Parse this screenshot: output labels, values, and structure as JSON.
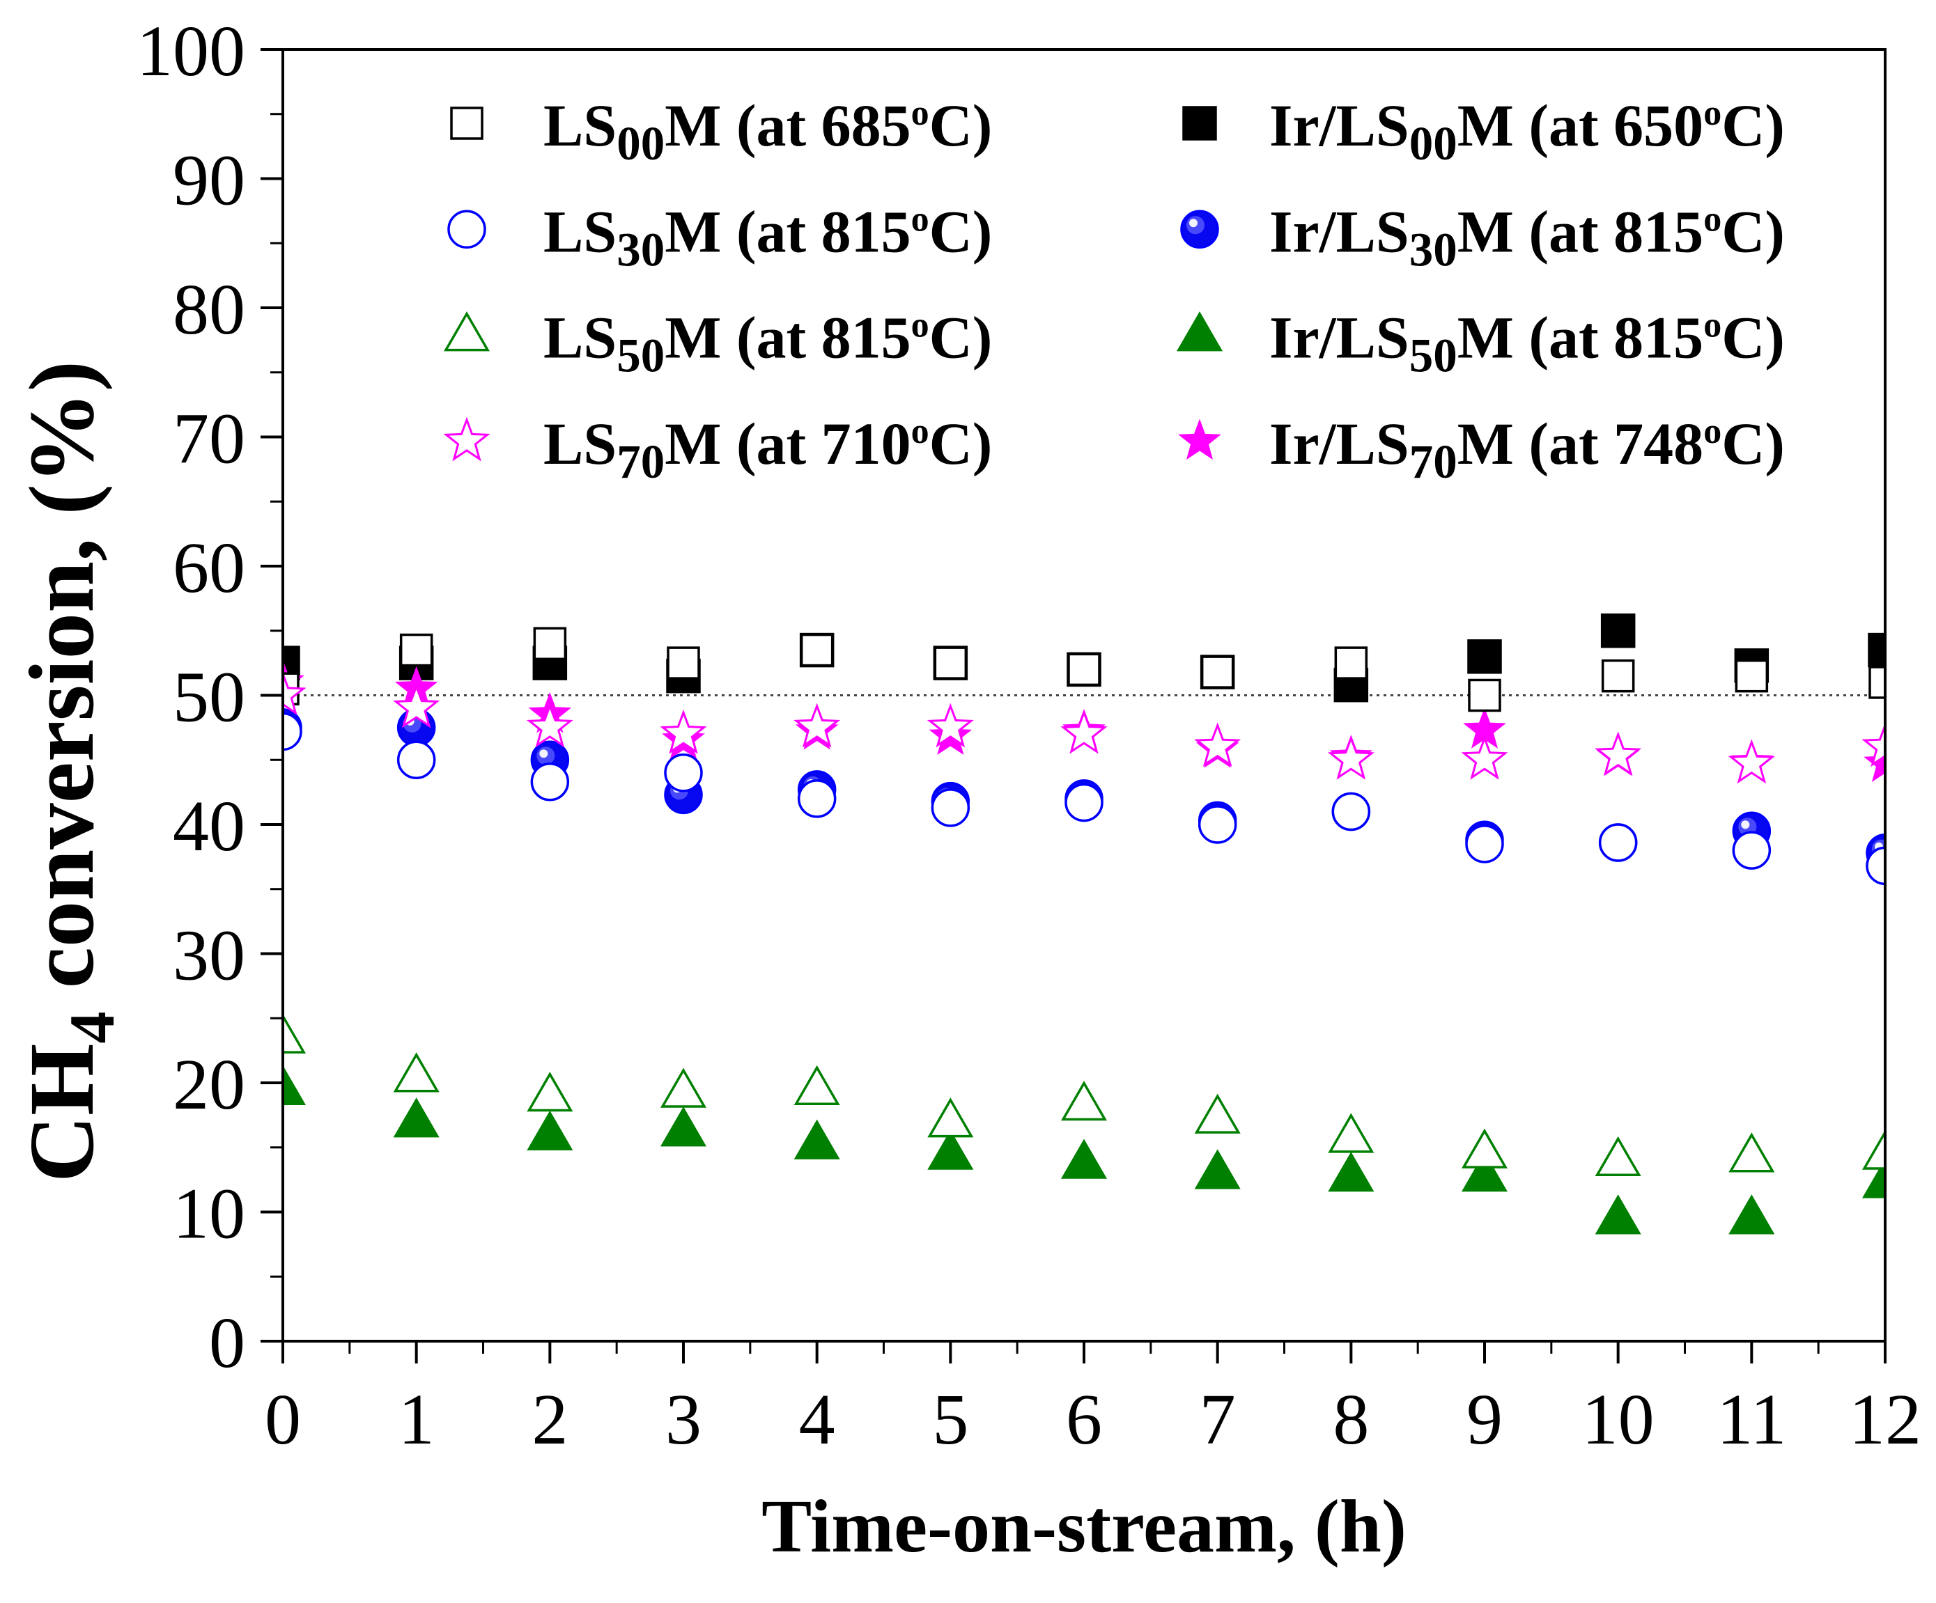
{
  "chart_data": {
    "type": "scatter",
    "title": "",
    "xlabel": "Time-on-stream, (h)",
    "ylabel": {
      "main": "CH",
      "sub": "4",
      "rest": " conversion, (%)"
    },
    "xlim": [
      0,
      12
    ],
    "ylim": [
      0,
      100
    ],
    "xticks": [
      0,
      1,
      2,
      3,
      4,
      5,
      6,
      7,
      8,
      9,
      10,
      11,
      12
    ],
    "yticks": [
      0,
      10,
      20,
      30,
      40,
      50,
      60,
      70,
      80,
      90,
      100
    ],
    "grid": false,
    "legend": "top",
    "reference_line": 50,
    "x": [
      0,
      1,
      2,
      3,
      4,
      5,
      6,
      7,
      8,
      9,
      10,
      11,
      12
    ],
    "series": [
      {
        "label": {
          "prefix": "LS",
          "sub": "00",
          "mid": "M (at 685",
          "sup": "o",
          "suffix": "C)"
        },
        "marker": "square",
        "filled": false,
        "color": "#000000",
        "values": [
          50.5,
          53.5,
          54.0,
          52.5,
          53.5,
          52.5,
          52.0,
          51.8,
          52.5,
          50.0,
          51.5,
          51.5,
          51.0
        ]
      },
      {
        "label": {
          "prefix": "Ir/LS",
          "sub": "00",
          "mid": "M (at 650",
          "sup": "o",
          "suffix": "C)"
        },
        "marker": "square",
        "filled": true,
        "color": "#000000",
        "values": [
          52.5,
          52.5,
          52.5,
          51.5,
          53.5,
          52.5,
          52.0,
          51.8,
          50.8,
          53.0,
          55.0,
          52.3,
          53.5
        ]
      },
      {
        "label": {
          "prefix": "LS",
          "sub": "30",
          "mid": "M (at 815",
          "sup": "o",
          "suffix": "C)"
        },
        "marker": "circle",
        "filled": false,
        "color": "#0000ff",
        "values": [
          47.2,
          45.0,
          43.3,
          44.0,
          42.0,
          41.3,
          41.7,
          40.0,
          41.0,
          38.5,
          38.6,
          38.0,
          36.8
        ]
      },
      {
        "label": {
          "prefix": "Ir/LS",
          "sub": "30",
          "mid": "M (at 815",
          "sup": "o",
          "suffix": "C)"
        },
        "marker": "circle",
        "filled": true,
        "color": "#0000ff",
        "values": [
          47.5,
          47.5,
          45.0,
          42.3,
          42.7,
          41.8,
          42.0,
          40.3,
          41.0,
          38.8,
          38.6,
          39.5,
          37.8
        ]
      },
      {
        "label": {
          "prefix": "LS",
          "sub": "50",
          "mid": "M (at 815",
          "sup": "o",
          "suffix": "C)"
        },
        "marker": "triangle",
        "filled": false,
        "color": "#008000",
        "values": [
          23.5,
          20.5,
          19.0,
          19.3,
          19.5,
          17.0,
          18.3,
          17.3,
          15.8,
          14.6,
          14.0,
          14.3,
          14.5
        ]
      },
      {
        "label": {
          "prefix": "Ir/LS",
          "sub": "50",
          "mid": "M (at 815",
          "sup": "o",
          "suffix": "C)"
        },
        "marker": "triangle",
        "filled": true,
        "color": "#008000",
        "values": [
          19.5,
          17.0,
          16.0,
          16.3,
          15.3,
          14.5,
          13.8,
          13.0,
          12.8,
          12.8,
          9.5,
          9.5,
          12.3
        ]
      },
      {
        "label": {
          "prefix": "LS",
          "sub": "70",
          "mid": "M (at 710",
          "sup": "o",
          "suffix": "C)"
        },
        "marker": "star",
        "filled": false,
        "color": "#ff00ff",
        "values": [
          50.0,
          49.0,
          47.5,
          47.0,
          47.5,
          47.5,
          47.0,
          46.0,
          45.0,
          45.0,
          45.3,
          44.7,
          46.0
        ]
      },
      {
        "label": {
          "prefix": "Ir/LS",
          "sub": "70",
          "mid": "M (at 748",
          "sup": "o",
          "suffix": "C)"
        },
        "marker": "star",
        "filled": true,
        "color": "#ff00ff",
        "values": [
          51.0,
          50.5,
          48.5,
          46.5,
          47.2,
          46.8,
          47.2,
          45.8,
          45.2,
          47.3,
          45.2,
          44.8,
          44.7
        ]
      }
    ]
  }
}
